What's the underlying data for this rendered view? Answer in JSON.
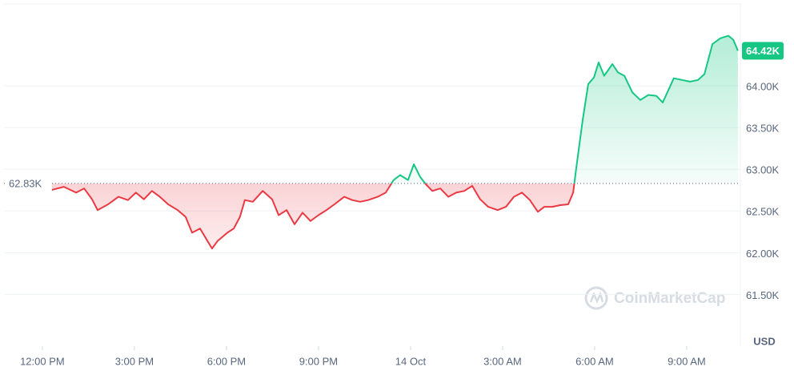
{
  "chart_data": {
    "type": "line",
    "x": [
      0.29,
      0.7,
      1.1,
      1.36,
      1.62,
      1.8,
      2.14,
      2.48,
      2.79,
      3.05,
      3.31,
      3.57,
      3.83,
      4.1,
      4.41,
      4.67,
      4.88,
      5.14,
      5.35,
      5.53,
      5.71,
      5.87,
      6.03,
      6.24,
      6.44,
      6.6,
      6.86,
      7.18,
      7.49,
      7.7,
      7.96,
      8.22,
      8.48,
      8.74,
      9.0,
      9.26,
      9.52,
      9.84,
      10.1,
      10.36,
      10.62,
      10.93,
      11.19,
      11.45,
      11.66,
      11.92,
      12.11,
      12.31,
      12.5,
      12.71,
      12.97,
      13.23,
      13.49,
      13.75,
      14.01,
      14.27,
      14.53,
      14.84,
      15.11,
      15.37,
      15.63,
      15.89,
      16.15,
      16.36,
      16.62,
      16.88,
      17.14,
      17.3,
      17.4,
      17.61,
      17.79,
      17.98,
      18.13,
      18.31,
      18.58,
      18.76,
      18.97,
      19.23,
      19.49,
      19.75,
      20.01,
      20.22,
      20.43,
      20.58,
      20.85,
      21.11,
      21.37,
      21.58,
      21.84,
      22.1,
      22.36,
      22.52,
      22.67
    ],
    "values": [
      62.75,
      62.79,
      62.72,
      62.77,
      62.64,
      62.51,
      62.58,
      62.67,
      62.63,
      62.72,
      62.64,
      62.74,
      62.67,
      62.58,
      62.51,
      62.43,
      62.24,
      62.29,
      62.16,
      62.05,
      62.14,
      62.19,
      62.24,
      62.29,
      62.43,
      62.63,
      62.61,
      62.74,
      62.64,
      62.45,
      62.51,
      62.34,
      62.48,
      62.38,
      62.45,
      62.51,
      62.58,
      62.67,
      62.63,
      62.61,
      62.63,
      62.67,
      62.72,
      62.87,
      62.93,
      62.87,
      63.06,
      62.91,
      62.82,
      62.74,
      62.77,
      62.67,
      62.72,
      62.74,
      62.8,
      62.64,
      62.55,
      62.51,
      62.55,
      62.67,
      62.72,
      62.63,
      62.49,
      62.55,
      62.55,
      62.57,
      62.58,
      62.72,
      63.01,
      63.59,
      64.02,
      64.1,
      64.28,
      64.12,
      64.26,
      64.16,
      64.12,
      63.92,
      63.83,
      63.89,
      63.88,
      63.8,
      63.97,
      64.09,
      64.07,
      64.05,
      64.07,
      64.14,
      64.5,
      64.57,
      64.6,
      64.55,
      64.42
    ],
    "up_color": "#16c784",
    "down_color": "#ea3943",
    "baseline": 62.83,
    "baseline_label": "62.83K",
    "last_value_label": "64.42K",
    "xlim": [
      -1.25,
      22.75
    ],
    "xticks": [
      {
        "value": 0,
        "label": "12:00 PM"
      },
      {
        "value": 3,
        "label": "3:00 PM"
      },
      {
        "value": 6,
        "label": "6:00 PM"
      },
      {
        "value": 9,
        "label": "9:00 PM"
      },
      {
        "value": 12,
        "label": "14 Oct"
      },
      {
        "value": 15,
        "label": "3:00 AM"
      },
      {
        "value": 18,
        "label": "6:00 AM"
      },
      {
        "value": 21,
        "label": "9:00 AM"
      }
    ],
    "ylim": [
      60.88,
      64.98
    ],
    "yticks": [
      {
        "value": 61.5,
        "label": "61.50K"
      },
      {
        "value": 62,
        "label": "62.00K"
      },
      {
        "value": 62.5,
        "label": "62.50K"
      },
      {
        "value": 63,
        "label": "63.00K"
      },
      {
        "value": 63.5,
        "label": "63.50K"
      },
      {
        "value": 64,
        "label": "64.00K"
      }
    ],
    "y_unit": "USD",
    "watermark": "CoinMarketCap",
    "grid": true
  }
}
